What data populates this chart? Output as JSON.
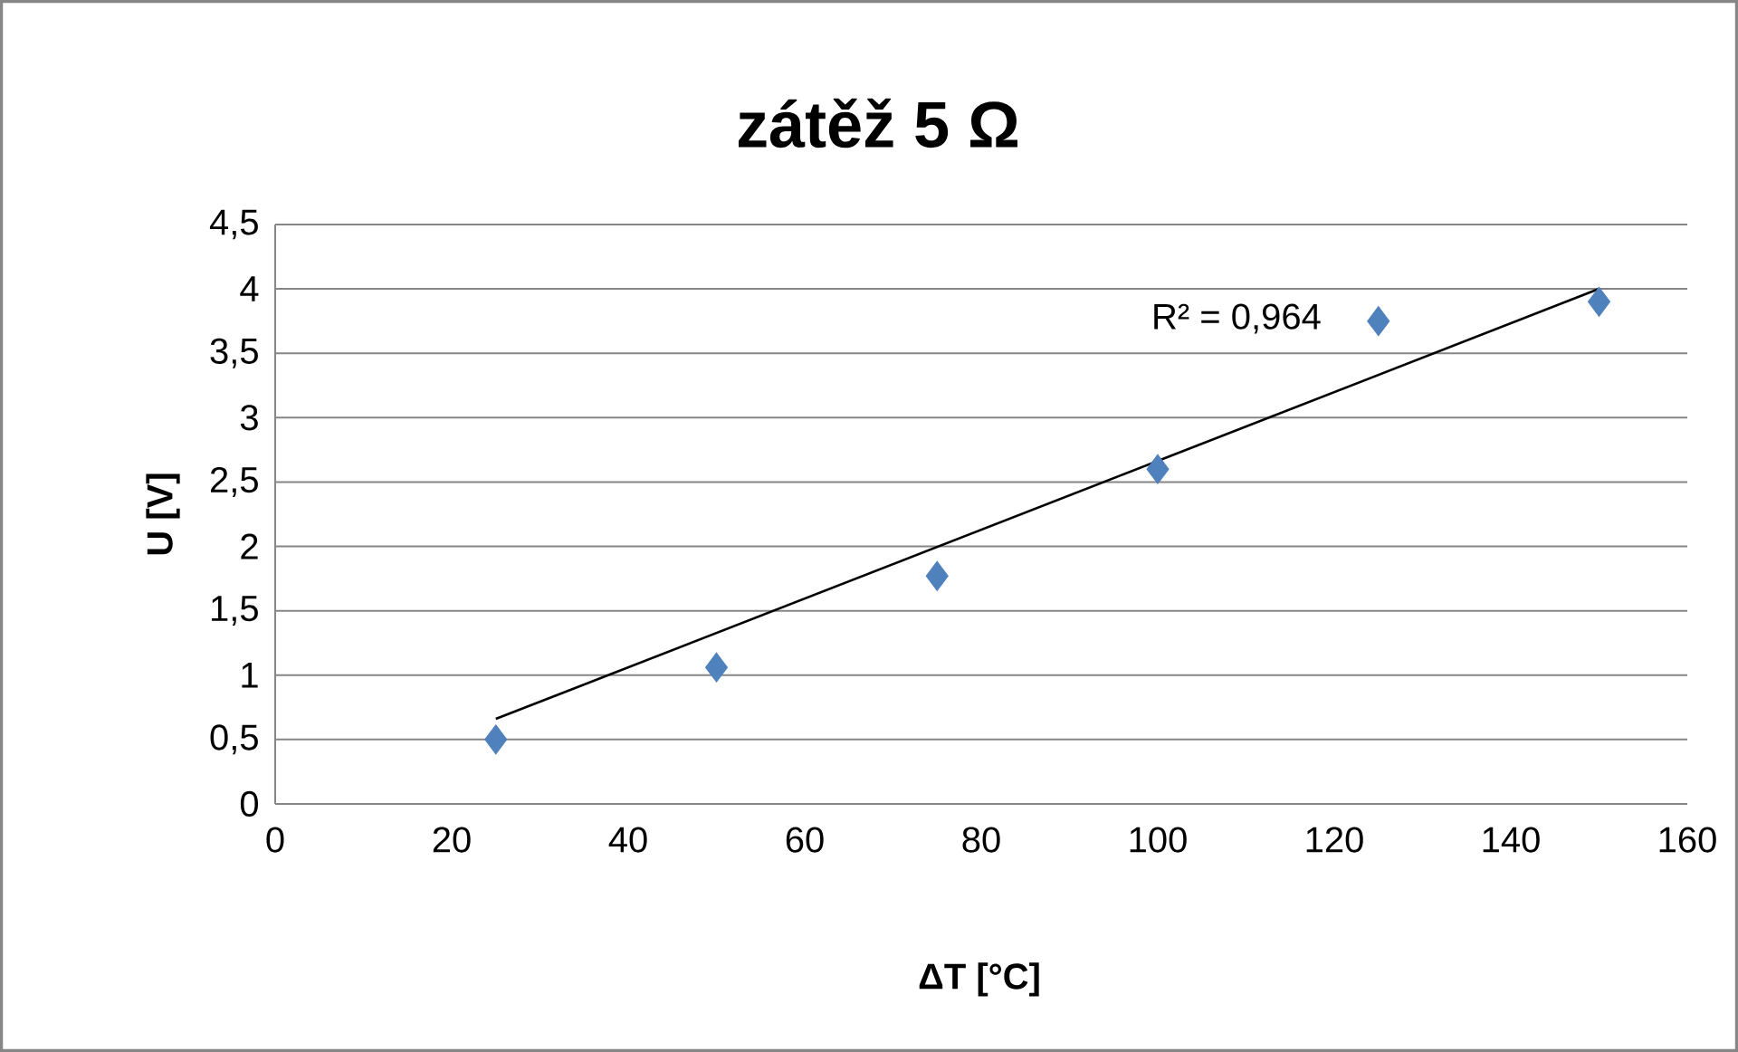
{
  "chart_data": {
    "type": "scatter",
    "title": "zátěž 5 Ω",
    "xlabel": "ΔT [°C]",
    "ylabel": "U [V]",
    "x": [
      25,
      50,
      75,
      100,
      125,
      150
    ],
    "series": [
      {
        "color": "#4f81bd",
        "marker": "diamond",
        "values": [
          0.5,
          1.06,
          1.77,
          2.6,
          3.75,
          3.9
        ]
      },
      {
        "type": "line",
        "color": "#000000",
        "x": [
          25,
          150
        ],
        "values": [
          0.66,
          4.0
        ]
      }
    ],
    "annotations": [
      "R² = 0,964"
    ],
    "xlim": [
      0,
      160
    ],
    "xticks": [
      0,
      20,
      40,
      60,
      80,
      100,
      120,
      140,
      160
    ],
    "ylim": [
      0,
      4.5
    ],
    "yticks": [
      0,
      {
        "value": 0.5,
        "label": "0,5"
      },
      1,
      {
        "value": 1.5,
        "label": "1,5"
      },
      2,
      {
        "value": 2.5,
        "label": "2,5"
      },
      3,
      {
        "value": 3.5,
        "label": "3,5"
      },
      4,
      {
        "value": 4.5,
        "label": "4,5"
      }
    ],
    "grid": "y"
  }
}
